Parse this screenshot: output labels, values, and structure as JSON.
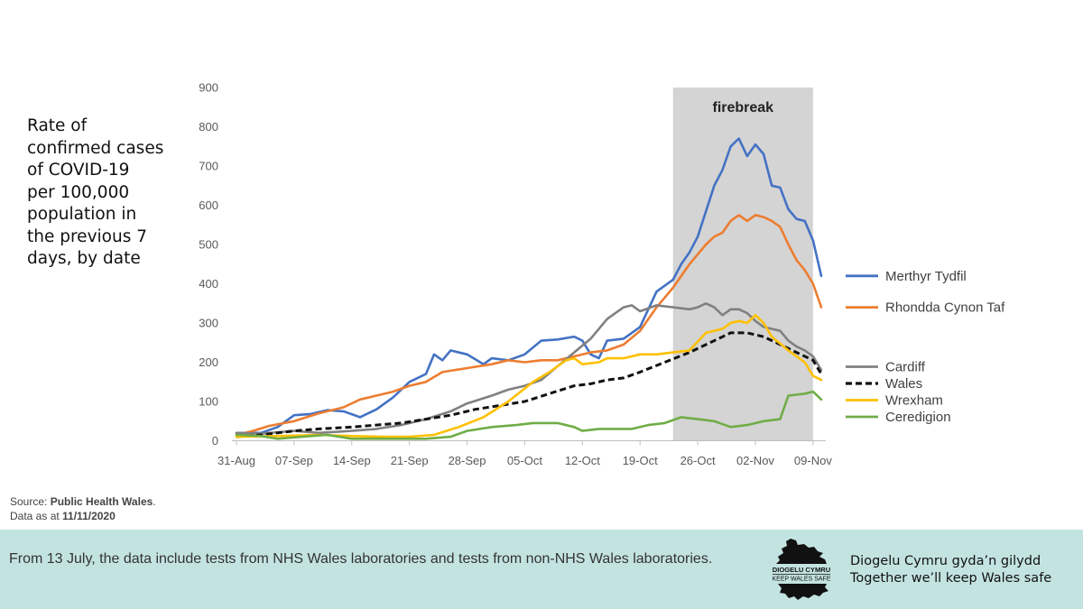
{
  "y_axis_title": "Rate of\nconfirmed cases\nof COVID-19\nper 100,000\npopulation in\nthe previous 7\ndays, by date",
  "source": {
    "prefix": "Source: ",
    "name": "Public Health Wales",
    "suffix": ".",
    "data_prefix": "Data as at ",
    "date": "11/11/2020"
  },
  "footer": {
    "note": "From 13 July, the data include tests from NHS Wales laboratories and tests from non-NHS Wales laboratories.",
    "logo_line1": "DIOGELU CYMRU",
    "logo_line2": "KEEP WALES SAFE",
    "slogan_welsh": "Diogelu Cymru gyda’n gilydd",
    "slogan_english": "Together we’ll keep Wales safe"
  },
  "chart_data": {
    "type": "line",
    "x_start": "2020-08-31",
    "x_end": "2020-11-10",
    "x_ticks": [
      {
        "date": "2020-08-31",
        "label": "31-Aug"
      },
      {
        "date": "2020-09-07",
        "label": "07-Sep"
      },
      {
        "date": "2020-09-14",
        "label": "14-Sep"
      },
      {
        "date": "2020-09-21",
        "label": "21-Sep"
      },
      {
        "date": "2020-09-28",
        "label": "28-Sep"
      },
      {
        "date": "2020-10-05",
        "label": "05-Oct"
      },
      {
        "date": "2020-10-12",
        "label": "12-Oct"
      },
      {
        "date": "2020-10-19",
        "label": "19-Oct"
      },
      {
        "date": "2020-10-26",
        "label": "26-Oct"
      },
      {
        "date": "2020-11-02",
        "label": "02-Nov"
      },
      {
        "date": "2020-11-09",
        "label": "09-Nov"
      }
    ],
    "ylim": [
      0,
      900
    ],
    "y_ticks": [
      0,
      100,
      200,
      300,
      400,
      500,
      600,
      700,
      800,
      900
    ],
    "grid": false,
    "legend": "right",
    "shaded_region": {
      "label": "firebreak",
      "start": "2020-10-23",
      "end": "2020-11-09",
      "color": "#d4d4d4"
    },
    "series": [
      {
        "name": "Merthyr Tydfil",
        "color": "#4472c4",
        "dashed": false,
        "points": [
          [
            "2020-08-31",
            20
          ],
          [
            "2020-09-03",
            20
          ],
          [
            "2020-09-05",
            35
          ],
          [
            "2020-09-07",
            65
          ],
          [
            "2020-09-09",
            68
          ],
          [
            "2020-09-11",
            78
          ],
          [
            "2020-09-13",
            75
          ],
          [
            "2020-09-15",
            60
          ],
          [
            "2020-09-17",
            80
          ],
          [
            "2020-09-19",
            110
          ],
          [
            "2020-09-21",
            150
          ],
          [
            "2020-09-23",
            170
          ],
          [
            "2020-09-24",
            220
          ],
          [
            "2020-09-25",
            205
          ],
          [
            "2020-09-26",
            230
          ],
          [
            "2020-09-28",
            220
          ],
          [
            "2020-09-30",
            195
          ],
          [
            "2020-10-01",
            210
          ],
          [
            "2020-10-03",
            205
          ],
          [
            "2020-10-05",
            220
          ],
          [
            "2020-10-07",
            255
          ],
          [
            "2020-10-09",
            258
          ],
          [
            "2020-10-11",
            265
          ],
          [
            "2020-10-12",
            255
          ],
          [
            "2020-10-13",
            220
          ],
          [
            "2020-10-14",
            210
          ],
          [
            "2020-10-15",
            255
          ],
          [
            "2020-10-17",
            260
          ],
          [
            "2020-10-19",
            290
          ],
          [
            "2020-10-21",
            380
          ],
          [
            "2020-10-23",
            410
          ],
          [
            "2020-10-24",
            450
          ],
          [
            "2020-10-25",
            480
          ],
          [
            "2020-10-26",
            520
          ],
          [
            "2020-10-28",
            650
          ],
          [
            "2020-10-29",
            690
          ],
          [
            "2020-10-30",
            750
          ],
          [
            "2020-10-31",
            770
          ],
          [
            "2020-11-01",
            725
          ],
          [
            "2020-11-02",
            755
          ],
          [
            "2020-11-03",
            730
          ],
          [
            "2020-11-04",
            650
          ],
          [
            "2020-11-05",
            645
          ],
          [
            "2020-11-06",
            590
          ],
          [
            "2020-11-07",
            565
          ],
          [
            "2020-11-08",
            560
          ],
          [
            "2020-11-09",
            510
          ],
          [
            "2020-11-10",
            420
          ]
        ]
      },
      {
        "name": "Rhondda Cynon Taf",
        "color": "#ed7d31",
        "dashed": false,
        "points": [
          [
            "2020-08-31",
            15
          ],
          [
            "2020-09-02",
            25
          ],
          [
            "2020-09-04",
            38
          ],
          [
            "2020-09-07",
            50
          ],
          [
            "2020-09-10",
            70
          ],
          [
            "2020-09-13",
            85
          ],
          [
            "2020-09-15",
            105
          ],
          [
            "2020-09-17",
            115
          ],
          [
            "2020-09-19",
            125
          ],
          [
            "2020-09-21",
            140
          ],
          [
            "2020-09-23",
            150
          ],
          [
            "2020-09-25",
            175
          ],
          [
            "2020-09-28",
            185
          ],
          [
            "2020-10-01",
            195
          ],
          [
            "2020-10-03",
            205
          ],
          [
            "2020-10-05",
            200
          ],
          [
            "2020-10-07",
            205
          ],
          [
            "2020-10-09",
            205
          ],
          [
            "2020-10-11",
            215
          ],
          [
            "2020-10-13",
            225
          ],
          [
            "2020-10-15",
            230
          ],
          [
            "2020-10-17",
            245
          ],
          [
            "2020-10-19",
            280
          ],
          [
            "2020-10-21",
            340
          ],
          [
            "2020-10-23",
            390
          ],
          [
            "2020-10-25",
            450
          ],
          [
            "2020-10-27",
            500
          ],
          [
            "2020-10-28",
            520
          ],
          [
            "2020-10-29",
            530
          ],
          [
            "2020-10-30",
            560
          ],
          [
            "2020-10-31",
            575
          ],
          [
            "2020-11-01",
            560
          ],
          [
            "2020-11-02",
            575
          ],
          [
            "2020-11-03",
            570
          ],
          [
            "2020-11-04",
            560
          ],
          [
            "2020-11-05",
            545
          ],
          [
            "2020-11-06",
            500
          ],
          [
            "2020-11-07",
            460
          ],
          [
            "2020-11-08",
            435
          ],
          [
            "2020-11-09",
            400
          ],
          [
            "2020-11-10",
            340
          ]
        ]
      },
      {
        "name": "Cardiff",
        "color": "#808080",
        "dashed": false,
        "points": [
          [
            "2020-08-31",
            20
          ],
          [
            "2020-09-03",
            18
          ],
          [
            "2020-09-07",
            25
          ],
          [
            "2020-09-10",
            20
          ],
          [
            "2020-09-14",
            25
          ],
          [
            "2020-09-17",
            30
          ],
          [
            "2020-09-20",
            40
          ],
          [
            "2020-09-23",
            55
          ],
          [
            "2020-09-26",
            75
          ],
          [
            "2020-09-28",
            95
          ],
          [
            "2020-10-01",
            115
          ],
          [
            "2020-10-03",
            130
          ],
          [
            "2020-10-05",
            140
          ],
          [
            "2020-10-07",
            155
          ],
          [
            "2020-10-09",
            190
          ],
          [
            "2020-10-11",
            225
          ],
          [
            "2020-10-13",
            260
          ],
          [
            "2020-10-15",
            310
          ],
          [
            "2020-10-17",
            340
          ],
          [
            "2020-10-18",
            345
          ],
          [
            "2020-10-19",
            330
          ],
          [
            "2020-10-21",
            345
          ],
          [
            "2020-10-23",
            340
          ],
          [
            "2020-10-25",
            335
          ],
          [
            "2020-10-26",
            340
          ],
          [
            "2020-10-27",
            350
          ],
          [
            "2020-10-28",
            340
          ],
          [
            "2020-10-29",
            320
          ],
          [
            "2020-10-30",
            335
          ],
          [
            "2020-10-31",
            335
          ],
          [
            "2020-11-01",
            325
          ],
          [
            "2020-11-02",
            305
          ],
          [
            "2020-11-03",
            290
          ],
          [
            "2020-11-04",
            285
          ],
          [
            "2020-11-05",
            280
          ],
          [
            "2020-11-06",
            255
          ],
          [
            "2020-11-07",
            240
          ],
          [
            "2020-11-08",
            230
          ],
          [
            "2020-11-09",
            215
          ],
          [
            "2020-11-10",
            180
          ]
        ]
      },
      {
        "name": "Wales",
        "color": "#111111",
        "dashed": true,
        "points": [
          [
            "2020-08-31",
            10
          ],
          [
            "2020-09-03",
            15
          ],
          [
            "2020-09-07",
            25
          ],
          [
            "2020-09-10",
            30
          ],
          [
            "2020-09-14",
            35
          ],
          [
            "2020-09-17",
            40
          ],
          [
            "2020-09-20",
            45
          ],
          [
            "2020-09-23",
            55
          ],
          [
            "2020-09-26",
            65
          ],
          [
            "2020-09-29",
            80
          ],
          [
            "2020-10-02",
            90
          ],
          [
            "2020-10-05",
            100
          ],
          [
            "2020-10-08",
            120
          ],
          [
            "2020-10-11",
            140
          ],
          [
            "2020-10-13",
            145
          ],
          [
            "2020-10-15",
            155
          ],
          [
            "2020-10-17",
            160
          ],
          [
            "2020-10-19",
            175
          ],
          [
            "2020-10-22",
            200
          ],
          [
            "2020-10-25",
            225
          ],
          [
            "2020-10-28",
            255
          ],
          [
            "2020-10-30",
            275
          ],
          [
            "2020-11-01",
            275
          ],
          [
            "2020-11-03",
            265
          ],
          [
            "2020-11-05",
            245
          ],
          [
            "2020-11-07",
            225
          ],
          [
            "2020-11-09",
            205
          ],
          [
            "2020-11-10",
            170
          ]
        ]
      },
      {
        "name": "Wrexham",
        "color": "#ffc000",
        "dashed": false,
        "points": [
          [
            "2020-08-31",
            10
          ],
          [
            "2020-09-05",
            12
          ],
          [
            "2020-09-10",
            15
          ],
          [
            "2020-09-14",
            12
          ],
          [
            "2020-09-18",
            10
          ],
          [
            "2020-09-21",
            10
          ],
          [
            "2020-09-24",
            15
          ],
          [
            "2020-09-27",
            35
          ],
          [
            "2020-09-30",
            60
          ],
          [
            "2020-10-03",
            100
          ],
          [
            "2020-10-06",
            150
          ],
          [
            "2020-10-08",
            175
          ],
          [
            "2020-10-10",
            205
          ],
          [
            "2020-10-11",
            210
          ],
          [
            "2020-10-12",
            195
          ],
          [
            "2020-10-14",
            200
          ],
          [
            "2020-10-15",
            210
          ],
          [
            "2020-10-17",
            210
          ],
          [
            "2020-10-19",
            220
          ],
          [
            "2020-10-21",
            220
          ],
          [
            "2020-10-23",
            225
          ],
          [
            "2020-10-25",
            230
          ],
          [
            "2020-10-27",
            275
          ],
          [
            "2020-10-29",
            285
          ],
          [
            "2020-10-30",
            300
          ],
          [
            "2020-10-31",
            305
          ],
          [
            "2020-11-01",
            300
          ],
          [
            "2020-11-02",
            320
          ],
          [
            "2020-11-03",
            300
          ],
          [
            "2020-11-04",
            265
          ],
          [
            "2020-11-06",
            230
          ],
          [
            "2020-11-07",
            215
          ],
          [
            "2020-11-08",
            200
          ],
          [
            "2020-11-09",
            165
          ],
          [
            "2020-11-10",
            155
          ]
        ]
      },
      {
        "name": "Ceredigion",
        "color": "#70ad47",
        "dashed": false,
        "points": [
          [
            "2020-08-31",
            15
          ],
          [
            "2020-09-03",
            12
          ],
          [
            "2020-09-05",
            5
          ],
          [
            "2020-09-08",
            10
          ],
          [
            "2020-09-11",
            15
          ],
          [
            "2020-09-14",
            5
          ],
          [
            "2020-09-17",
            5
          ],
          [
            "2020-09-20",
            5
          ],
          [
            "2020-09-23",
            5
          ],
          [
            "2020-09-26",
            10
          ],
          [
            "2020-09-28",
            25
          ],
          [
            "2020-10-01",
            35
          ],
          [
            "2020-10-04",
            40
          ],
          [
            "2020-10-06",
            45
          ],
          [
            "2020-10-09",
            45
          ],
          [
            "2020-10-11",
            35
          ],
          [
            "2020-10-12",
            25
          ],
          [
            "2020-10-14",
            30
          ],
          [
            "2020-10-16",
            30
          ],
          [
            "2020-10-18",
            30
          ],
          [
            "2020-10-20",
            40
          ],
          [
            "2020-10-22",
            45
          ],
          [
            "2020-10-24",
            60
          ],
          [
            "2020-10-26",
            55
          ],
          [
            "2020-10-28",
            50
          ],
          [
            "2020-10-30",
            35
          ],
          [
            "2020-11-01",
            40
          ],
          [
            "2020-11-03",
            50
          ],
          [
            "2020-11-05",
            55
          ],
          [
            "2020-11-06",
            115
          ],
          [
            "2020-11-08",
            120
          ],
          [
            "2020-11-09",
            125
          ],
          [
            "2020-11-10",
            105
          ]
        ]
      }
    ]
  }
}
